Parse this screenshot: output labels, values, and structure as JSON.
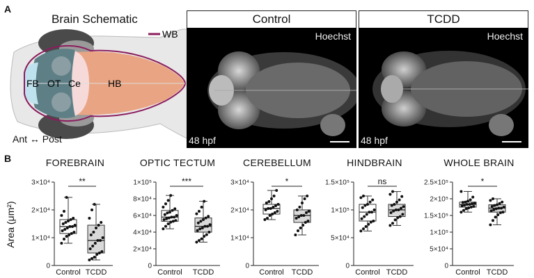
{
  "panel_a": {
    "letter": "A",
    "schematic_title": "Brain Schematic",
    "legend_label": "WB",
    "region_labels": {
      "fb": "FB",
      "ot": "OT",
      "ce": "Ce",
      "hb": "HB"
    },
    "axis_label": "Ant ↔ Post",
    "images": [
      {
        "title": "Control",
        "stain": "Hoechst",
        "stage": "48 hpf"
      },
      {
        "title": "TCDD",
        "stain": "Hoechst",
        "stage": "48 hpf"
      }
    ],
    "colors": {
      "wb_outline": "#8b1d5e",
      "forebrain": "#bfe3ee",
      "optic_tectum": "#5e7f86",
      "cerebellum": "#f6d9d9",
      "hindbrain": "#e9a583"
    }
  },
  "panel_b": {
    "letter": "B",
    "ylabel": "Area (μm²)"
  },
  "chart_data": [
    {
      "type": "box",
      "title": "FOREBRAIN",
      "categories": [
        "Control",
        "TCDD"
      ],
      "ylim": [
        0,
        30000
      ],
      "yticks": [
        0,
        10000,
        20000,
        30000
      ],
      "ytick_labels": [
        "0",
        "1×10⁴",
        "2×10⁴",
        "3×10⁴"
      ],
      "significance": "**",
      "groups": [
        {
          "name": "Control",
          "min": 8000,
          "q1": 11500,
          "median": 14000,
          "q3": 16500,
          "max": 24500,
          "points": [
            8000,
            9500,
            10500,
            11000,
            11500,
            12000,
            12500,
            13000,
            13500,
            14000,
            14000,
            14500,
            15000,
            15500,
            16000,
            16500,
            17000,
            18000,
            19500,
            24500
          ]
        },
        {
          "name": "TCDD",
          "min": 2000,
          "q1": 4500,
          "median": 9000,
          "q3": 14500,
          "max": 22000,
          "points": [
            2000,
            2500,
            3000,
            4000,
            4500,
            5000,
            6000,
            7000,
            8000,
            9000,
            9000,
            10000,
            11000,
            12000,
            13500,
            14500,
            15500,
            17000,
            20000,
            22000
          ]
        }
      ]
    },
    {
      "type": "box",
      "title": "OPTIC TECTUM",
      "categories": [
        "Control",
        "TCDD"
      ],
      "ylim": [
        0,
        100000
      ],
      "yticks": [
        0,
        20000,
        40000,
        60000,
        80000,
        100000
      ],
      "ytick_labels": [
        "0",
        "2×10⁴",
        "4×10⁴",
        "6×10⁴",
        "8×10⁴",
        "1×10⁵"
      ],
      "significance": "***",
      "groups": [
        {
          "name": "Control",
          "min": 44000,
          "q1": 53000,
          "median": 58000,
          "q3": 66000,
          "max": 84000,
          "points": [
            44000,
            47000,
            50000,
            52000,
            53000,
            54000,
            55000,
            56000,
            57000,
            58000,
            58000,
            60000,
            61000,
            63000,
            64000,
            66000,
            68000,
            70000,
            74000,
            78000,
            84000
          ]
        },
        {
          "name": "TCDD",
          "min": 28000,
          "q1": 40000,
          "median": 47000,
          "q3": 57000,
          "max": 77000,
          "points": [
            28000,
            30000,
            32000,
            35000,
            37000,
            40000,
            42000,
            44000,
            45000,
            47000,
            47000,
            49000,
            51000,
            53000,
            55000,
            57000,
            59000,
            62000,
            65000,
            70000,
            77000
          ]
        }
      ]
    },
    {
      "type": "box",
      "title": "CEREBELLUM",
      "categories": [
        "Control",
        "TCDD"
      ],
      "ylim": [
        0,
        30000
      ],
      "yticks": [
        0,
        10000,
        20000,
        30000
      ],
      "ytick_labels": [
        "0",
        "1×10⁴",
        "2×10⁴",
        "3×10⁴"
      ],
      "significance": "*",
      "groups": [
        {
          "name": "Control",
          "min": 16500,
          "q1": 18500,
          "median": 20500,
          "q3": 22000,
          "max": 27000,
          "points": [
            16500,
            17000,
            18000,
            18500,
            19000,
            19500,
            20000,
            20500,
            20500,
            21000,
            21500,
            22000,
            22500,
            23000,
            24000,
            25000,
            27000
          ]
        },
        {
          "name": "TCDD",
          "min": 11000,
          "q1": 15500,
          "median": 18000,
          "q3": 20000,
          "max": 25000,
          "points": [
            11000,
            12500,
            13500,
            14500,
            15500,
            16000,
            17000,
            17500,
            18000,
            18000,
            19000,
            19500,
            20000,
            21000,
            22500,
            24000,
            25000
          ]
        }
      ]
    },
    {
      "type": "box",
      "title": "HINDBRAIN",
      "categories": [
        "Control",
        "TCDD"
      ],
      "ylim": [
        0,
        150000
      ],
      "yticks": [
        0,
        50000,
        100000,
        150000
      ],
      "ytick_labels": [
        "0",
        "5×10⁴",
        "1×10⁵",
        "1.5×10⁵"
      ],
      "significance": "ns",
      "groups": [
        {
          "name": "Control",
          "min": 62000,
          "q1": 80000,
          "median": 96000,
          "q3": 110000,
          "max": 125000,
          "points": [
            62000,
            66000,
            70000,
            74000,
            78000,
            80000,
            84000,
            88000,
            92000,
            96000,
            96000,
            100000,
            104000,
            108000,
            110000,
            114000,
            118000,
            122000,
            125000
          ]
        },
        {
          "name": "TCDD",
          "min": 72000,
          "q1": 88000,
          "median": 100000,
          "q3": 110000,
          "max": 133000,
          "points": [
            72000,
            76000,
            82000,
            86000,
            88000,
            92000,
            95000,
            98000,
            100000,
            100000,
            103000,
            106000,
            108000,
            110000,
            114000,
            118000,
            124000,
            128000,
            133000
          ]
        }
      ]
    },
    {
      "type": "box",
      "title": "WHOLE BRAIN",
      "categories": [
        "Control",
        "TCDD"
      ],
      "ylim": [
        0,
        250000
      ],
      "yticks": [
        0,
        50000,
        100000,
        150000,
        200000,
        250000
      ],
      "ytick_labels": [
        "0",
        "5×10⁴",
        "1×10⁵",
        "1.5×10⁵",
        "2×10⁵",
        "2.5×10⁵"
      ],
      "significance": "*",
      "groups": [
        {
          "name": "Control",
          "min": 160000,
          "q1": 175000,
          "median": 183000,
          "q3": 190000,
          "max": 222000,
          "points": [
            160000,
            165000,
            170000,
            173000,
            175000,
            177000,
            179000,
            181000,
            183000,
            183000,
            185000,
            187000,
            189000,
            190000,
            193000,
            197000,
            205000,
            222000
          ]
        },
        {
          "name": "TCDD",
          "min": 122000,
          "q1": 160000,
          "median": 172000,
          "q3": 182000,
          "max": 200000,
          "points": [
            122000,
            135000,
            145000,
            152000,
            158000,
            160000,
            164000,
            167000,
            170000,
            172000,
            172000,
            175000,
            177000,
            180000,
            182000,
            186000,
            190000,
            195000,
            200000
          ]
        }
      ]
    }
  ]
}
